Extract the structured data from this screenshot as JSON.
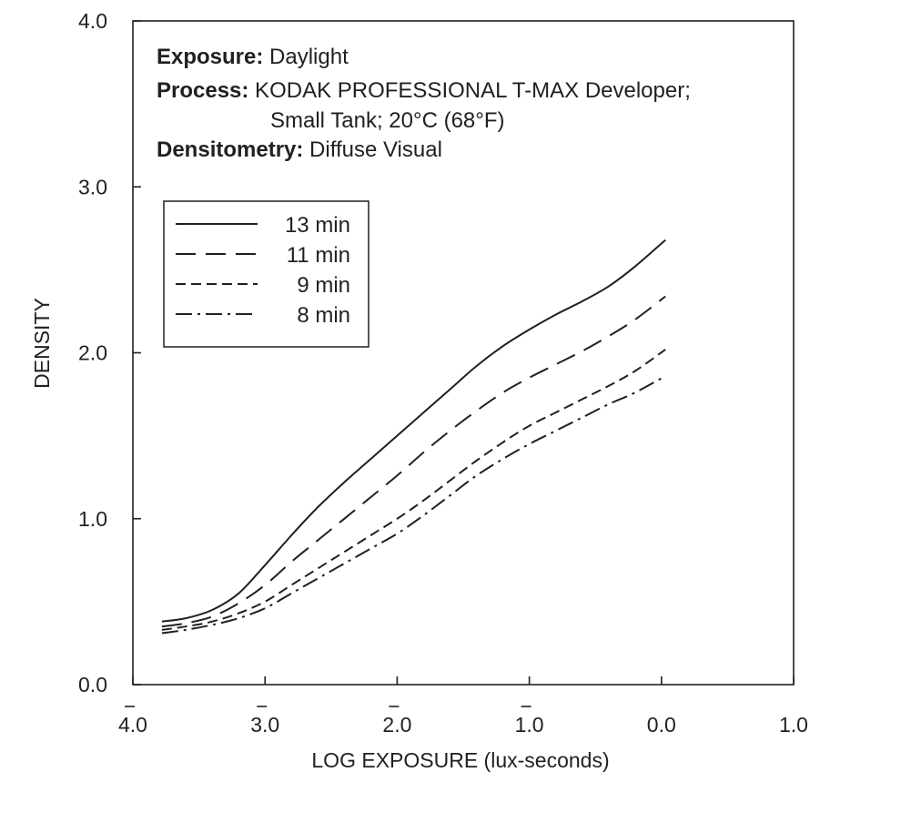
{
  "chart_data": {
    "type": "line",
    "title": "",
    "xlabel": "LOG EXPOSURE (lux-seconds)",
    "ylabel": "DENSITY",
    "xlim": [
      -4.0,
      1.0
    ],
    "ylim": [
      0.0,
      4.0
    ],
    "x_ticks": [
      {
        "value": -4.0,
        "label": "4.0",
        "bar": true
      },
      {
        "value": -3.0,
        "label": "3.0",
        "bar": true
      },
      {
        "value": -2.0,
        "label": "2.0",
        "bar": true
      },
      {
        "value": -1.0,
        "label": "1.0",
        "bar": true
      },
      {
        "value": 0.0,
        "label": "0.0",
        "bar": false
      },
      {
        "value": 1.0,
        "label": "1.0",
        "bar": false
      }
    ],
    "y_ticks": [
      {
        "value": 0.0,
        "label": "0.0"
      },
      {
        "value": 1.0,
        "label": "1.0"
      },
      {
        "value": 2.0,
        "label": "2.0"
      },
      {
        "value": 3.0,
        "label": "3.0"
      },
      {
        "value": 4.0,
        "label": "4.0"
      }
    ],
    "annotation": [
      {
        "bold": "Exposure:",
        "text": " Daylight"
      },
      {
        "bold": "Process:",
        "text": " KODAK PROFESSIONAL T-MAX Developer;"
      },
      {
        "bold": "",
        "text": "Small Tank; 20°C (68°F)"
      },
      {
        "bold": "Densitometry:",
        "text": " Diffuse Visual"
      }
    ],
    "legend_position": "upper-left",
    "grid": false,
    "series": [
      {
        "name": "13 min",
        "dash": "solid",
        "points": [
          [
            -3.78,
            0.38
          ],
          [
            -3.6,
            0.4
          ],
          [
            -3.4,
            0.45
          ],
          [
            -3.2,
            0.55
          ],
          [
            -3.0,
            0.72
          ],
          [
            -2.8,
            0.9
          ],
          [
            -2.6,
            1.07
          ],
          [
            -2.4,
            1.22
          ],
          [
            -2.2,
            1.36
          ],
          [
            -2.0,
            1.5
          ],
          [
            -1.8,
            1.64
          ],
          [
            -1.6,
            1.78
          ],
          [
            -1.4,
            1.92
          ],
          [
            -1.2,
            2.04
          ],
          [
            -1.0,
            2.14
          ],
          [
            -0.8,
            2.23
          ],
          [
            -0.6,
            2.31
          ],
          [
            -0.4,
            2.4
          ],
          [
            -0.2,
            2.52
          ],
          [
            0.03,
            2.68
          ]
        ]
      },
      {
        "name": "11 min",
        "dash": "long-dash",
        "points": [
          [
            -3.78,
            0.35
          ],
          [
            -3.6,
            0.37
          ],
          [
            -3.4,
            0.41
          ],
          [
            -3.2,
            0.49
          ],
          [
            -3.0,
            0.6
          ],
          [
            -2.8,
            0.74
          ],
          [
            -2.6,
            0.87
          ],
          [
            -2.4,
            1.0
          ],
          [
            -2.2,
            1.13
          ],
          [
            -2.0,
            1.26
          ],
          [
            -1.8,
            1.4
          ],
          [
            -1.6,
            1.53
          ],
          [
            -1.4,
            1.65
          ],
          [
            -1.2,
            1.76
          ],
          [
            -1.0,
            1.85
          ],
          [
            -0.8,
            1.93
          ],
          [
            -0.6,
            2.01
          ],
          [
            -0.4,
            2.1
          ],
          [
            -0.2,
            2.2
          ],
          [
            0.03,
            2.34
          ]
        ]
      },
      {
        "name": "9 min",
        "dash": "short-dash",
        "points": [
          [
            -3.78,
            0.33
          ],
          [
            -3.6,
            0.35
          ],
          [
            -3.4,
            0.38
          ],
          [
            -3.2,
            0.43
          ],
          [
            -3.0,
            0.5
          ],
          [
            -2.8,
            0.6
          ],
          [
            -2.6,
            0.7
          ],
          [
            -2.4,
            0.8
          ],
          [
            -2.2,
            0.9
          ],
          [
            -2.0,
            1.0
          ],
          [
            -1.8,
            1.11
          ],
          [
            -1.6,
            1.23
          ],
          [
            -1.4,
            1.35
          ],
          [
            -1.2,
            1.46
          ],
          [
            -1.0,
            1.56
          ],
          [
            -0.8,
            1.64
          ],
          [
            -0.6,
            1.72
          ],
          [
            -0.4,
            1.8
          ],
          [
            -0.2,
            1.89
          ],
          [
            0.03,
            2.02
          ]
        ]
      },
      {
        "name": "8 min",
        "dash": "dash-dot",
        "points": [
          [
            -3.78,
            0.31
          ],
          [
            -3.6,
            0.33
          ],
          [
            -3.4,
            0.36
          ],
          [
            -3.2,
            0.4
          ],
          [
            -3.0,
            0.46
          ],
          [
            -2.8,
            0.55
          ],
          [
            -2.6,
            0.64
          ],
          [
            -2.4,
            0.73
          ],
          [
            -2.2,
            0.82
          ],
          [
            -2.0,
            0.91
          ],
          [
            -1.8,
            1.02
          ],
          [
            -1.6,
            1.14
          ],
          [
            -1.4,
            1.26
          ],
          [
            -1.2,
            1.36
          ],
          [
            -1.0,
            1.45
          ],
          [
            -0.8,
            1.53
          ],
          [
            -0.6,
            1.61
          ],
          [
            -0.4,
            1.69
          ],
          [
            -0.2,
            1.76
          ],
          [
            0.03,
            1.86
          ]
        ]
      }
    ]
  }
}
